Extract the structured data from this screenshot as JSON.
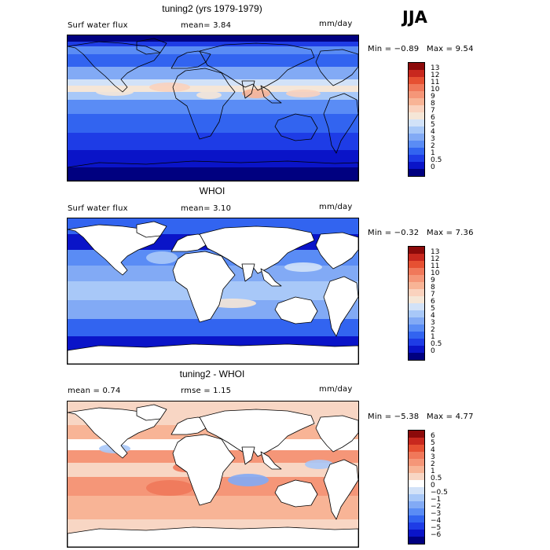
{
  "season": "JJA",
  "colors": {
    "flux_scale": [
      "#000080",
      "#0a14c8",
      "#1e3ce6",
      "#3264f0",
      "#5a8cf5",
      "#82aaf5",
      "#a8c8f8",
      "#d2e2f8",
      "#f5e6d7",
      "#fad2be",
      "#f8b496",
      "#f59678",
      "#f0785a",
      "#e65032",
      "#c8281e",
      "#8c0a0a"
    ],
    "diff_scale": [
      "#000080",
      "#0a14c8",
      "#1e3ce6",
      "#3264f0",
      "#5a8cf5",
      "#82aaf5",
      "#a8c8f8",
      "#d2e2f8",
      "#ffffff",
      "#f8d6c4",
      "#f8b496",
      "#f59678",
      "#f0785a",
      "#e65032",
      "#c8281e",
      "#8c0a0a"
    ],
    "land": "#ffffff",
    "coast": "#000000"
  },
  "panels": [
    {
      "title": "tuning2 (yrs 1979-1979)",
      "left_text": "Surf water flux",
      "mid_text": "mean=   3.84",
      "units": "mm/day",
      "min_text": "Min =  −0.89",
      "max_text": "Max =   9.54",
      "mean_value": 3.84,
      "min_value": -0.89,
      "max_value": 9.54,
      "fill": "global",
      "scale_labels": [
        "13",
        "12",
        "11",
        "10",
        "9",
        "8",
        "7",
        "6",
        "5",
        "4",
        "3",
        "2",
        "1",
        "0.5",
        "0"
      ]
    },
    {
      "title": "WHOI",
      "left_text": "Surf water flux",
      "mid_text": "mean=   3.10",
      "units": "mm/day",
      "min_text": "Min =  −0.32",
      "max_text": "Max =   7.36",
      "mean_value": 3.1,
      "min_value": -0.32,
      "max_value": 7.36,
      "fill": "ocean",
      "scale_labels": [
        "13",
        "12",
        "11",
        "10",
        "9",
        "8",
        "7",
        "6",
        "5",
        "4",
        "3",
        "2",
        "1",
        "0.5",
        "0"
      ]
    },
    {
      "title": "tuning2 - WHOI",
      "left_text": "mean =   0.74",
      "mid_text": "rmse =   1.15",
      "units": "mm/day",
      "min_text": "Min =  −5.38",
      "max_text": "Max =   4.77",
      "mean_value": 0.74,
      "rmse_value": 1.15,
      "min_value": -5.38,
      "max_value": 4.77,
      "fill": "diff",
      "scale_labels": [
        "6",
        "5",
        "4",
        "3",
        "2",
        "1",
        "0.5",
        "0",
        "−0.5",
        "−1",
        "−2",
        "−3",
        "−4",
        "−5",
        "−6"
      ]
    }
  ]
}
